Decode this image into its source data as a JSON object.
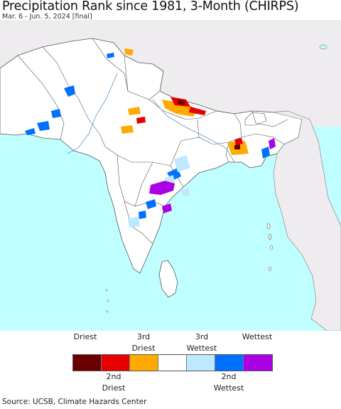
{
  "header": {
    "title": "Precipitation Rank since 1981, 3-Month (CHIRPS)",
    "subtitle": "Mar. 6 - Jun. 5, 2024 [final]"
  },
  "map": {
    "region": "South Asia",
    "colors": {
      "ocean": "#c0ffff",
      "land": "#ffffff",
      "outside_region": "#efecef",
      "borders": "#555555"
    }
  },
  "legend": {
    "top_labels": [
      {
        "line1": "",
        "line2": "Driest"
      },
      {
        "line1": "3rd",
        "line2": "Driest"
      },
      {
        "line1": "3rd",
        "line2": "Wettest"
      },
      {
        "line1": "",
        "line2": "Wettest"
      }
    ],
    "bottom_labels": [
      {
        "line1": "2nd",
        "line2": "Driest"
      },
      {
        "line1": "2nd",
        "line2": "Wettest"
      }
    ],
    "classes": [
      {
        "rank": "Driest",
        "color": "#6b0000"
      },
      {
        "rank": "2nd Driest",
        "color": "#e60000"
      },
      {
        "rank": "3rd Driest",
        "color": "#ffaa00"
      },
      {
        "rank": "Normal",
        "color": "#ffffff"
      },
      {
        "rank": "3rd Wettest",
        "color": "#bee8ff"
      },
      {
        "rank": "2nd Wettest",
        "color": "#0070ff"
      },
      {
        "rank": "Wettest",
        "color": "#a900e6"
      }
    ]
  },
  "footer": {
    "source": "Source: UCSB, Climate Hazards Center"
  }
}
